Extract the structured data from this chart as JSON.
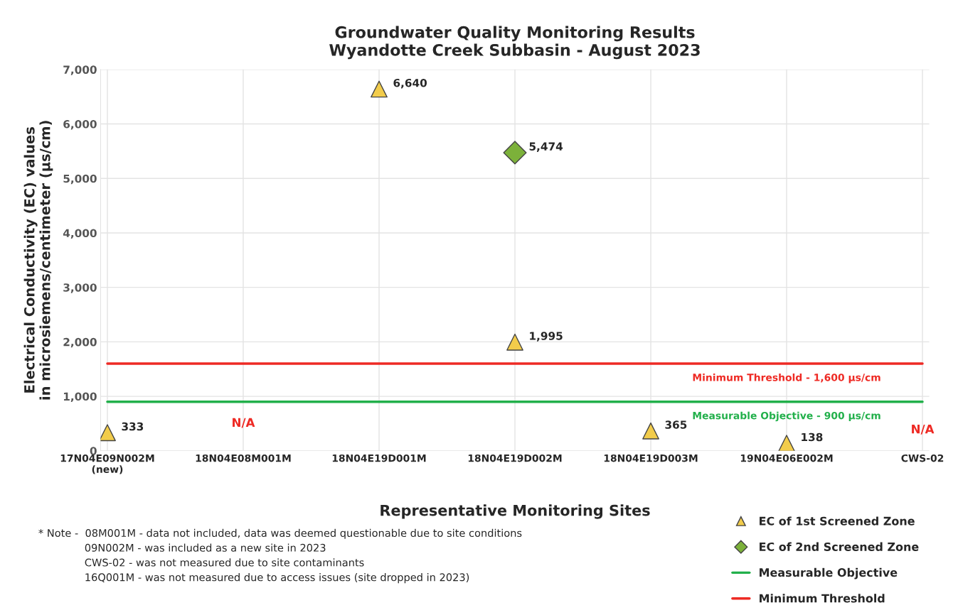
{
  "chart_data": {
    "type": "scatter",
    "title": "Groundwater Quality Monitoring Results\nWyandotte Creek Subbasin - August 2023",
    "xlabel": "Representative Monitoring Sites",
    "ylabel": "Electrical Conductivity (EC) values\nin microsiemens/centimeter (µs/cm)",
    "categories": [
      "17N04E09N002M\n(new)",
      "18N04E08M001M",
      "18N04E19D001M",
      "18N04E19D002M",
      "18N04E19D003M",
      "19N04E06E002M",
      "CWS-02"
    ],
    "series": [
      {
        "name": "EC of 1st Screened Zone",
        "color": "#f2cc4b",
        "marker": "triangle",
        "values": [
          333,
          null,
          6640,
          1995,
          365,
          138,
          null
        ],
        "value_labels": [
          "333",
          null,
          "6,640",
          "1,995",
          "365",
          "138",
          null
        ]
      },
      {
        "name": "EC of 2nd Screened Zone",
        "color": "#7cb13a",
        "marker": "diamond",
        "values": [
          null,
          null,
          null,
          5474,
          null,
          null,
          null
        ],
        "value_labels": [
          null,
          null,
          null,
          "5,474",
          null,
          null,
          null
        ]
      },
      {
        "name": "Measurable Objective",
        "type": "line",
        "color": "#22b04b",
        "values": [
          900,
          900,
          900,
          900,
          900,
          900,
          900
        ]
      },
      {
        "name": "Minimum Threshold",
        "type": "line",
        "color": "#ee2a24",
        "values": [
          1600,
          1600,
          1600,
          1600,
          1600,
          1600,
          1600
        ]
      }
    ],
    "ylim": [
      0,
      7000
    ],
    "yticks": [
      0,
      {
        "value": 1000,
        "label": "1,000"
      },
      {
        "value": 2000,
        "label": "2,000"
      },
      {
        "value": 3000,
        "label": "3,000"
      },
      {
        "value": 4000,
        "label": "4,000"
      },
      {
        "value": 5000,
        "label": "5,000"
      },
      {
        "value": 6000,
        "label": "6,000"
      },
      {
        "value": 7000,
        "label": "7,000"
      }
    ],
    "grid": true,
    "legend": "bottom right",
    "annotations": [
      {
        "text": "Minimum Threshold - 1,600 µs/cm",
        "x": "19N04E06E002M",
        "y": 1600
      },
      {
        "text": "Measurable Objective - 900 µs/cm",
        "x": "19N04E06E002M",
        "y": 900
      },
      "N/A",
      "N/A",
      "* Note -  08M001M - data not included, data was deemed questionable due to site conditions\n              09N002M - was included as a new site in 2023\n              CWS-02 - was not measured due to site contaminants\n              16Q001M - was not measured due to access issues (site dropped in 2023)"
    ]
  }
}
